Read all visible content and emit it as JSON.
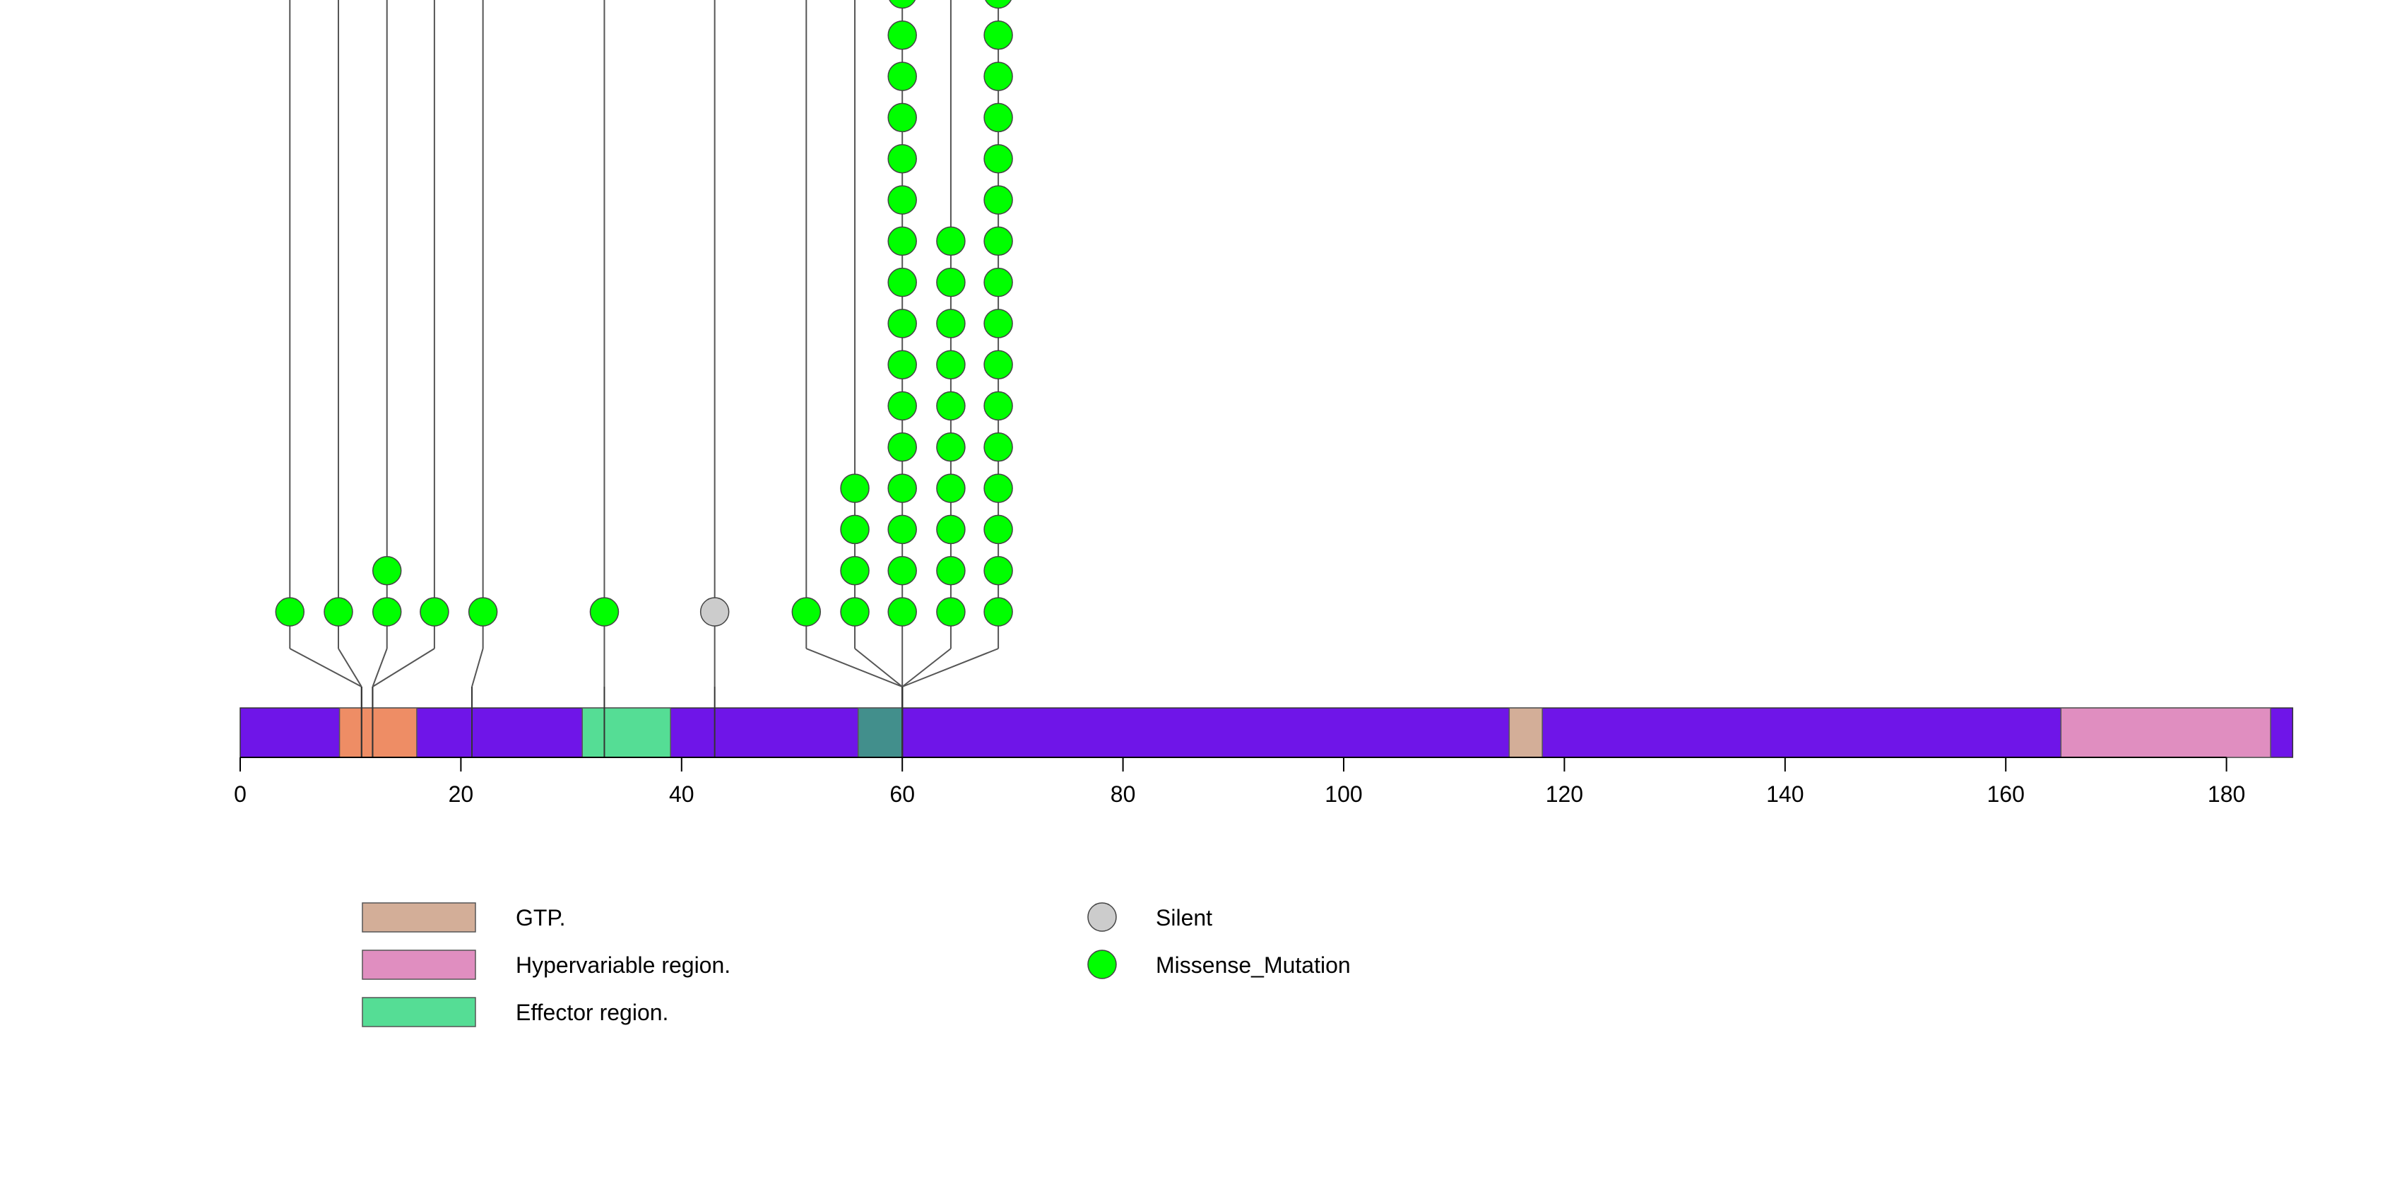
{
  "chart_data": {
    "type": "lollipop",
    "protein_length": 186,
    "x_axis": {
      "range": [
        0,
        186
      ],
      "ticks": [
        0,
        20,
        40,
        60,
        80,
        100,
        120,
        140,
        160,
        180
      ],
      "tick_labels": [
        "0",
        "20",
        "40",
        "60",
        "80",
        "100",
        "120",
        "140",
        "160",
        "180"
      ]
    },
    "backbone_color": "#6f15e8",
    "domains": [
      {
        "start": 9,
        "end": 16,
        "color": "#ee8d65",
        "overlay_color": "#ee8d65"
      },
      {
        "start": 31,
        "end": 39,
        "color": "#55dd95"
      },
      {
        "start": 56,
        "end": 60,
        "color": "#428f8c"
      },
      {
        "start": 115,
        "end": 118,
        "color": "#d3ae98"
      },
      {
        "start": 165,
        "end": 184,
        "color": "#e08ec0"
      }
    ],
    "mutations": [
      {
        "position": 4.5,
        "count": 1,
        "type": "Missense_Mutation"
      },
      {
        "position": 8.9,
        "count": 1,
        "type": "Missense_Mutation"
      },
      {
        "position": 13.3,
        "count": 2,
        "type": "Missense_Mutation"
      },
      {
        "position": 17.6,
        "count": 1,
        "type": "Missense_Mutation"
      },
      {
        "position": 22,
        "count": 1,
        "type": "Missense_Mutation"
      },
      {
        "position": 33,
        "count": 1,
        "type": "Missense_Mutation"
      },
      {
        "position": 43,
        "count": 1,
        "type": "Silent"
      },
      {
        "position": 51.3,
        "count": 1,
        "type": "Missense_Mutation"
      },
      {
        "position": 55.7,
        "count": 4,
        "type": "Missense_Mutation"
      },
      {
        "position": 60,
        "count": 16,
        "type": "Missense_Mutation"
      },
      {
        "position": 64.4,
        "count": 10,
        "type": "Missense_Mutation"
      },
      {
        "position": 68.7,
        "count": 16,
        "type": "Missense_Mutation"
      }
    ],
    "stem_targets": [
      {
        "from": 4.5,
        "to": 11
      },
      {
        "from": 8.9,
        "to": 11
      },
      {
        "from": 13.3,
        "to": 12
      },
      {
        "from": 17.6,
        "to": 12
      },
      {
        "from": 22,
        "to": 21
      },
      {
        "from": 33,
        "to": 33
      },
      {
        "from": 43,
        "to": 43
      },
      {
        "from": 51.3,
        "to": 60
      },
      {
        "from": 55.7,
        "to": 60
      },
      {
        "from": 60,
        "to": 60
      },
      {
        "from": 64.4,
        "to": 60
      },
      {
        "from": 68.7,
        "to": 60
      }
    ],
    "legend_domains": [
      {
        "label": "GTP.",
        "color": "#d3ae98"
      },
      {
        "label": "Hypervariable region.",
        "color": "#e08ec0"
      },
      {
        "label": "Effector region.",
        "color": "#55dd95"
      }
    ],
    "legend_mutations": [
      {
        "label": "Silent",
        "color": "#cccccc"
      },
      {
        "label": "Missense_Mutation",
        "color": "#00ff00"
      }
    ],
    "mutation_colors": {
      "Missense_Mutation": "#00ff00",
      "Silent": "#cccccc"
    }
  }
}
